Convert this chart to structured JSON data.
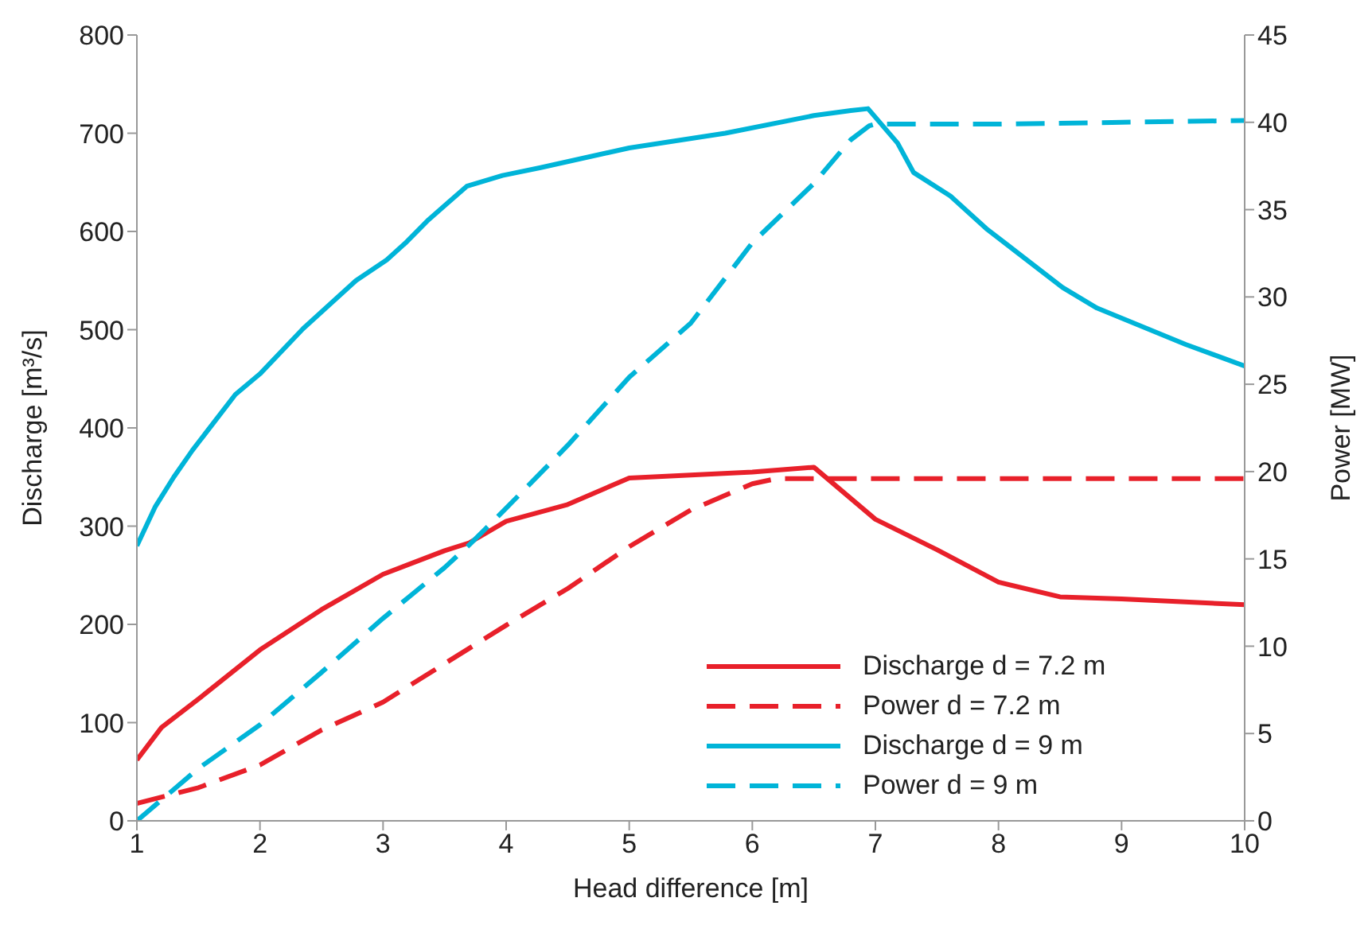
{
  "chart_data": {
    "type": "line",
    "xlabel": "Head difference [m]",
    "ylabel": "Discharge [m³/s]",
    "y2label": "Power [MW]",
    "xlim": [
      1,
      10
    ],
    "xticks": [
      1,
      2,
      3,
      4,
      5,
      6,
      7,
      8,
      9,
      10
    ],
    "ylim": [
      0,
      800
    ],
    "yticks": [
      0,
      100,
      200,
      300,
      400,
      500,
      600,
      700,
      800
    ],
    "y2lim": [
      0,
      45
    ],
    "y2ticks": [
      0,
      5,
      10,
      15,
      20,
      25,
      30,
      35,
      40,
      45
    ],
    "grid": false,
    "legend": "bottom right",
    "marker": "none",
    "series": [
      {
        "name": "Discharge d = 7.2 m",
        "color": "#e8202a",
        "line_style": "solid",
        "x": [
          1,
          1.2,
          1.5,
          2,
          2.5,
          3,
          3.5,
          3.7,
          4,
          4.5,
          5,
          5.5,
          6,
          6.5,
          7,
          7.5,
          8,
          8.5,
          9,
          10
        ],
        "values": [
          62,
          95,
          124,
          174,
          215,
          251,
          275,
          283,
          305,
          322,
          349,
          352,
          355,
          360,
          307,
          276,
          243,
          228,
          226,
          220
        ]
      },
      {
        "name": "Power d = 7.2 m",
        "color": "#e8202a",
        "line_style": "dashed",
        "axis": "y2",
        "x": [
          1,
          1.5,
          2,
          2.5,
          3,
          3.5,
          4,
          4.5,
          5,
          5.5,
          6,
          6.2,
          7,
          8,
          9,
          10
        ],
        "values": [
          1,
          1.9,
          3.2,
          5.2,
          6.8,
          9,
          11.2,
          13.3,
          15.7,
          17.8,
          19.3,
          19.6,
          19.6,
          19.6,
          19.6,
          19.6
        ]
      },
      {
        "name": "Discharge d = 9 m",
        "color": "#00b4d8",
        "line_style": "solid",
        "x": [
          1,
          1.15,
          1.3,
          1.45,
          1.8,
          2,
          2.35,
          2.78,
          3.03,
          3.18,
          3.37,
          3.68,
          3.97,
          4.28,
          5,
          5.78,
          6.5,
          6.8,
          6.94,
          7.18,
          7.31,
          7.61,
          7.9,
          8.52,
          8.8,
          9.52,
          10
        ],
        "values": [
          280,
          320,
          350,
          377,
          434,
          455,
          501,
          550,
          571,
          588,
          612,
          646,
          657,
          665,
          685,
          700,
          718,
          723,
          725,
          690,
          660,
          636,
          603,
          543,
          522,
          485,
          463
        ]
      },
      {
        "name": "Power d = 9 m",
        "color": "#00b4d8",
        "line_style": "dashed",
        "axis": "y2",
        "x": [
          1,
          1.3,
          1.5,
          2,
          2.5,
          3,
          3.5,
          3.7,
          4,
          4.5,
          5,
          5.5,
          6,
          6.5,
          6.8,
          6.95,
          7,
          8,
          9,
          10
        ],
        "values": [
          0,
          1.8,
          3,
          5.5,
          8.5,
          11.6,
          14.5,
          15.8,
          17.9,
          21.5,
          25.4,
          28.5,
          33.1,
          36.5,
          39,
          39.8,
          39.9,
          39.9,
          40,
          40.1
        ]
      }
    ]
  }
}
